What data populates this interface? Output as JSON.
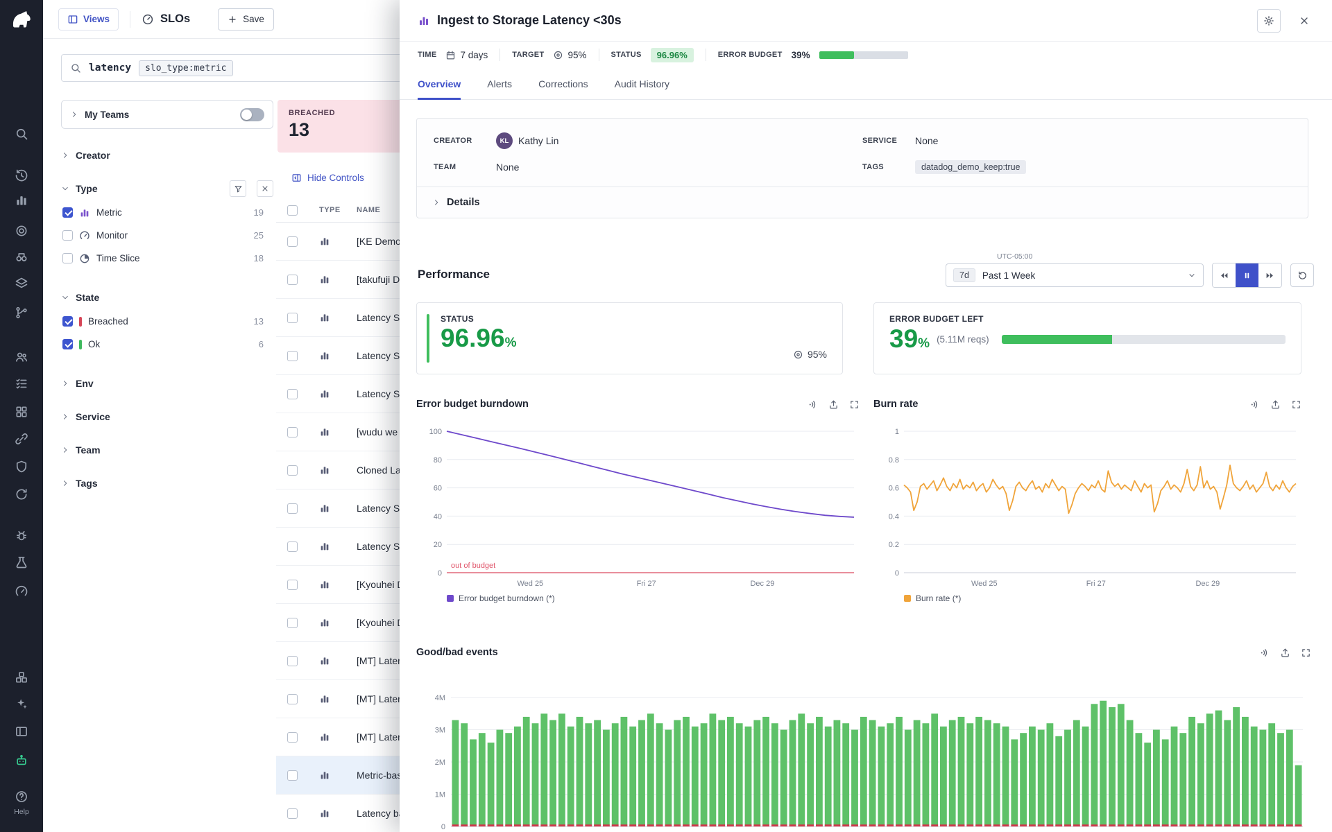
{
  "app": {
    "help_label": "Help"
  },
  "colors": {
    "accent_blue": "#3f51c9",
    "green": "#189a47",
    "bar_green": "#3fbe5d",
    "breached_red": "#d64557",
    "ok_green": "#3eb95e",
    "purple": "#6e49cb",
    "orange": "#f0a43a"
  },
  "topbar": {
    "views_label": "Views",
    "page_title": "SLOs",
    "save_label": "Save"
  },
  "search": {
    "term": "latency",
    "chip": "slo_type:metric"
  },
  "facets": {
    "my_teams_label": "My Teams",
    "creator_label": "Creator",
    "type_label": "Type",
    "type_options": [
      {
        "label": "Metric",
        "count": "19",
        "checked": true
      },
      {
        "label": "Monitor",
        "count": "25",
        "checked": false
      },
      {
        "label": "Time Slice",
        "count": "18",
        "checked": false
      }
    ],
    "state_label": "State",
    "state_options": [
      {
        "label": "Breached",
        "count": "13",
        "checked": true,
        "color": "#d64557"
      },
      {
        "label": "Ok",
        "count": "6",
        "checked": true,
        "color": "#3eb95e"
      }
    ],
    "env_label": "Env",
    "service_label": "Service",
    "team_label": "Team",
    "tags_label": "Tags"
  },
  "summary": {
    "breached_label": "BREACHED",
    "breached_count": "13"
  },
  "list": {
    "hide_controls_label": "Hide Controls",
    "col_type": "TYPE",
    "col_name": "NAME",
    "rows": [
      {
        "name": "[KE Demo"
      },
      {
        "name": "[takufuji D"
      },
      {
        "name": "Latency SL"
      },
      {
        "name": "Latency SL"
      },
      {
        "name": "Latency SL"
      },
      {
        "name": "[wudu we"
      },
      {
        "name": "Cloned La"
      },
      {
        "name": "Latency SL"
      },
      {
        "name": "Latency SL"
      },
      {
        "name": "[Kyouhei D"
      },
      {
        "name": "[Kyouhei D"
      },
      {
        "name": "[MT] Later"
      },
      {
        "name": "[MT] Later"
      },
      {
        "name": "[MT] Later"
      },
      {
        "name": "Metric-bas",
        "selected": true
      },
      {
        "name": "Latency ba"
      }
    ]
  },
  "panel": {
    "title": "Ingest to Storage Latency <30s",
    "meta": {
      "time_label": "TIME",
      "time_value": "7 days",
      "target_label": "TARGET",
      "target_value": "95%",
      "status_label": "STATUS",
      "status_value": "96.96%",
      "budget_label": "ERROR BUDGET",
      "budget_value": "39%",
      "budget_pct": 39
    },
    "tabs": [
      "Overview",
      "Alerts",
      "Corrections",
      "Audit History"
    ],
    "info": {
      "creator_label": "CREATOR",
      "creator_name": "Kathy Lin",
      "creator_initials": "KL",
      "service_label": "SERVICE",
      "service_value": "None",
      "team_label": "TEAM",
      "team_value": "None",
      "tags_label": "TAGS",
      "tag": "datadog_demo_keep:true",
      "details_label": "Details"
    },
    "performance": {
      "heading": "Performance",
      "timezone": "UTC-05:00",
      "range_short": "7d",
      "range_label": "Past 1 Week"
    },
    "status_card": {
      "label": "STATUS",
      "value": "96.96",
      "unit": "%",
      "target": "95%"
    },
    "budget_card": {
      "label": "ERROR BUDGET LEFT",
      "value": "39",
      "unit": "%",
      "detail": "(5.11M reqs)",
      "pct": 39
    }
  },
  "chart_data": [
    {
      "type": "line",
      "title": "Error budget burndown",
      "legend": "Error budget burndown (*)",
      "color": "#6e49cb",
      "ylim": [
        0,
        100
      ],
      "yticks": [
        {
          "v": 0,
          "label": "0"
        },
        {
          "v": 20,
          "label": "20"
        },
        {
          "v": 40,
          "label": "40"
        },
        {
          "v": 60,
          "label": "60"
        },
        {
          "v": 80,
          "label": "80"
        },
        {
          "v": 100,
          "label": "100"
        }
      ],
      "xticks": [
        "Wed 25",
        "Fri 27",
        "Dec 29"
      ],
      "xtick_pos": [
        0.205,
        0.49,
        0.775
      ],
      "baseline": {
        "color": "#e2697c",
        "label": "out of budget",
        "label_color": "#e0556a"
      },
      "values": [
        100,
        97.6,
        95.2,
        92.8,
        90.4,
        88,
        85.5,
        83,
        80.4,
        77.8,
        75.2,
        72.6,
        70,
        67.6,
        65.2,
        62.8,
        60.4,
        58,
        55.5,
        53,
        50.8,
        48.6,
        46.6,
        44.8,
        43.2,
        41.8,
        40.6,
        39.8,
        39.2
      ]
    },
    {
      "type": "line",
      "title": "Burn rate",
      "legend": "Burn rate (*)",
      "color": "#f0a43a",
      "ylim": [
        0,
        1
      ],
      "yticks": [
        {
          "v": 0,
          "label": "0"
        },
        {
          "v": 0.2,
          "label": "0.2"
        },
        {
          "v": 0.4,
          "label": "0.4"
        },
        {
          "v": 0.6,
          "label": "0.6"
        },
        {
          "v": 0.8,
          "label": "0.8"
        },
        {
          "v": 1,
          "label": "1"
        }
      ],
      "xticks": [
        "Wed 25",
        "Fri 27",
        "Dec 29"
      ],
      "xtick_pos": [
        0.205,
        0.49,
        0.775
      ],
      "values": [
        0.62,
        0.6,
        0.57,
        0.44,
        0.5,
        0.61,
        0.63,
        0.59,
        0.62,
        0.65,
        0.58,
        0.62,
        0.67,
        0.61,
        0.58,
        0.63,
        0.6,
        0.66,
        0.59,
        0.62,
        0.6,
        0.64,
        0.58,
        0.61,
        0.63,
        0.57,
        0.6,
        0.66,
        0.62,
        0.59,
        0.61,
        0.56,
        0.44,
        0.51,
        0.61,
        0.64,
        0.6,
        0.58,
        0.62,
        0.65,
        0.59,
        0.61,
        0.57,
        0.63,
        0.6,
        0.66,
        0.62,
        0.58,
        0.61,
        0.59,
        0.42,
        0.48,
        0.56,
        0.6,
        0.63,
        0.61,
        0.58,
        0.62,
        0.6,
        0.65,
        0.59,
        0.57,
        0.72,
        0.64,
        0.61,
        0.63,
        0.59,
        0.62,
        0.6,
        0.58,
        0.65,
        0.61,
        0.57,
        0.63,
        0.6,
        0.62,
        0.43,
        0.49,
        0.58,
        0.61,
        0.65,
        0.59,
        0.62,
        0.6,
        0.57,
        0.63,
        0.73,
        0.61,
        0.58,
        0.62,
        0.75,
        0.6,
        0.65,
        0.59,
        0.61,
        0.57,
        0.45,
        0.53,
        0.62,
        0.76,
        0.63,
        0.6,
        0.58,
        0.61,
        0.65,
        0.59,
        0.62,
        0.57,
        0.6,
        0.63,
        0.71,
        0.61,
        0.58,
        0.62,
        0.59,
        0.65,
        0.6,
        0.57,
        0.61,
        0.63
      ]
    },
    {
      "type": "bar",
      "title": "Good/bad events",
      "color": "#5ec168",
      "bad_color": "#d0364a",
      "bad_value": 0.06,
      "ylim": [
        0,
        4
      ],
      "yticks": [
        {
          "v": 0,
          "label": "0"
        },
        {
          "v": 1,
          "label": "1M"
        },
        {
          "v": 2,
          "label": "2M"
        },
        {
          "v": 3,
          "label": "3M"
        },
        {
          "v": 4,
          "label": "4M"
        }
      ],
      "values": [
        3.3,
        3.2,
        2.7,
        2.9,
        2.6,
        3.0,
        2.9,
        3.1,
        3.4,
        3.2,
        3.5,
        3.3,
        3.5,
        3.1,
        3.4,
        3.2,
        3.3,
        3.0,
        3.2,
        3.4,
        3.1,
        3.3,
        3.5,
        3.2,
        3.0,
        3.3,
        3.4,
        3.1,
        3.2,
        3.5,
        3.3,
        3.4,
        3.2,
        3.1,
        3.3,
        3.4,
        3.2,
        3.0,
        3.3,
        3.5,
        3.2,
        3.4,
        3.1,
        3.3,
        3.2,
        3.0,
        3.4,
        3.3,
        3.1,
        3.2,
        3.4,
        3.0,
        3.3,
        3.2,
        3.5,
        3.1,
        3.3,
        3.4,
        3.2,
        3.4,
        3.3,
        3.2,
        3.1,
        2.7,
        2.9,
        3.1,
        3.0,
        3.2,
        2.8,
        3.0,
        3.3,
        3.1,
        3.8,
        3.9,
        3.7,
        3.8,
        3.3,
        2.9,
        2.6,
        3.0,
        2.7,
        3.1,
        2.9,
        3.4,
        3.2,
        3.5,
        3.6,
        3.3,
        3.7,
        3.4,
        3.1,
        3.0,
        3.2,
        2.9,
        3.0,
        1.9
      ]
    }
  ]
}
